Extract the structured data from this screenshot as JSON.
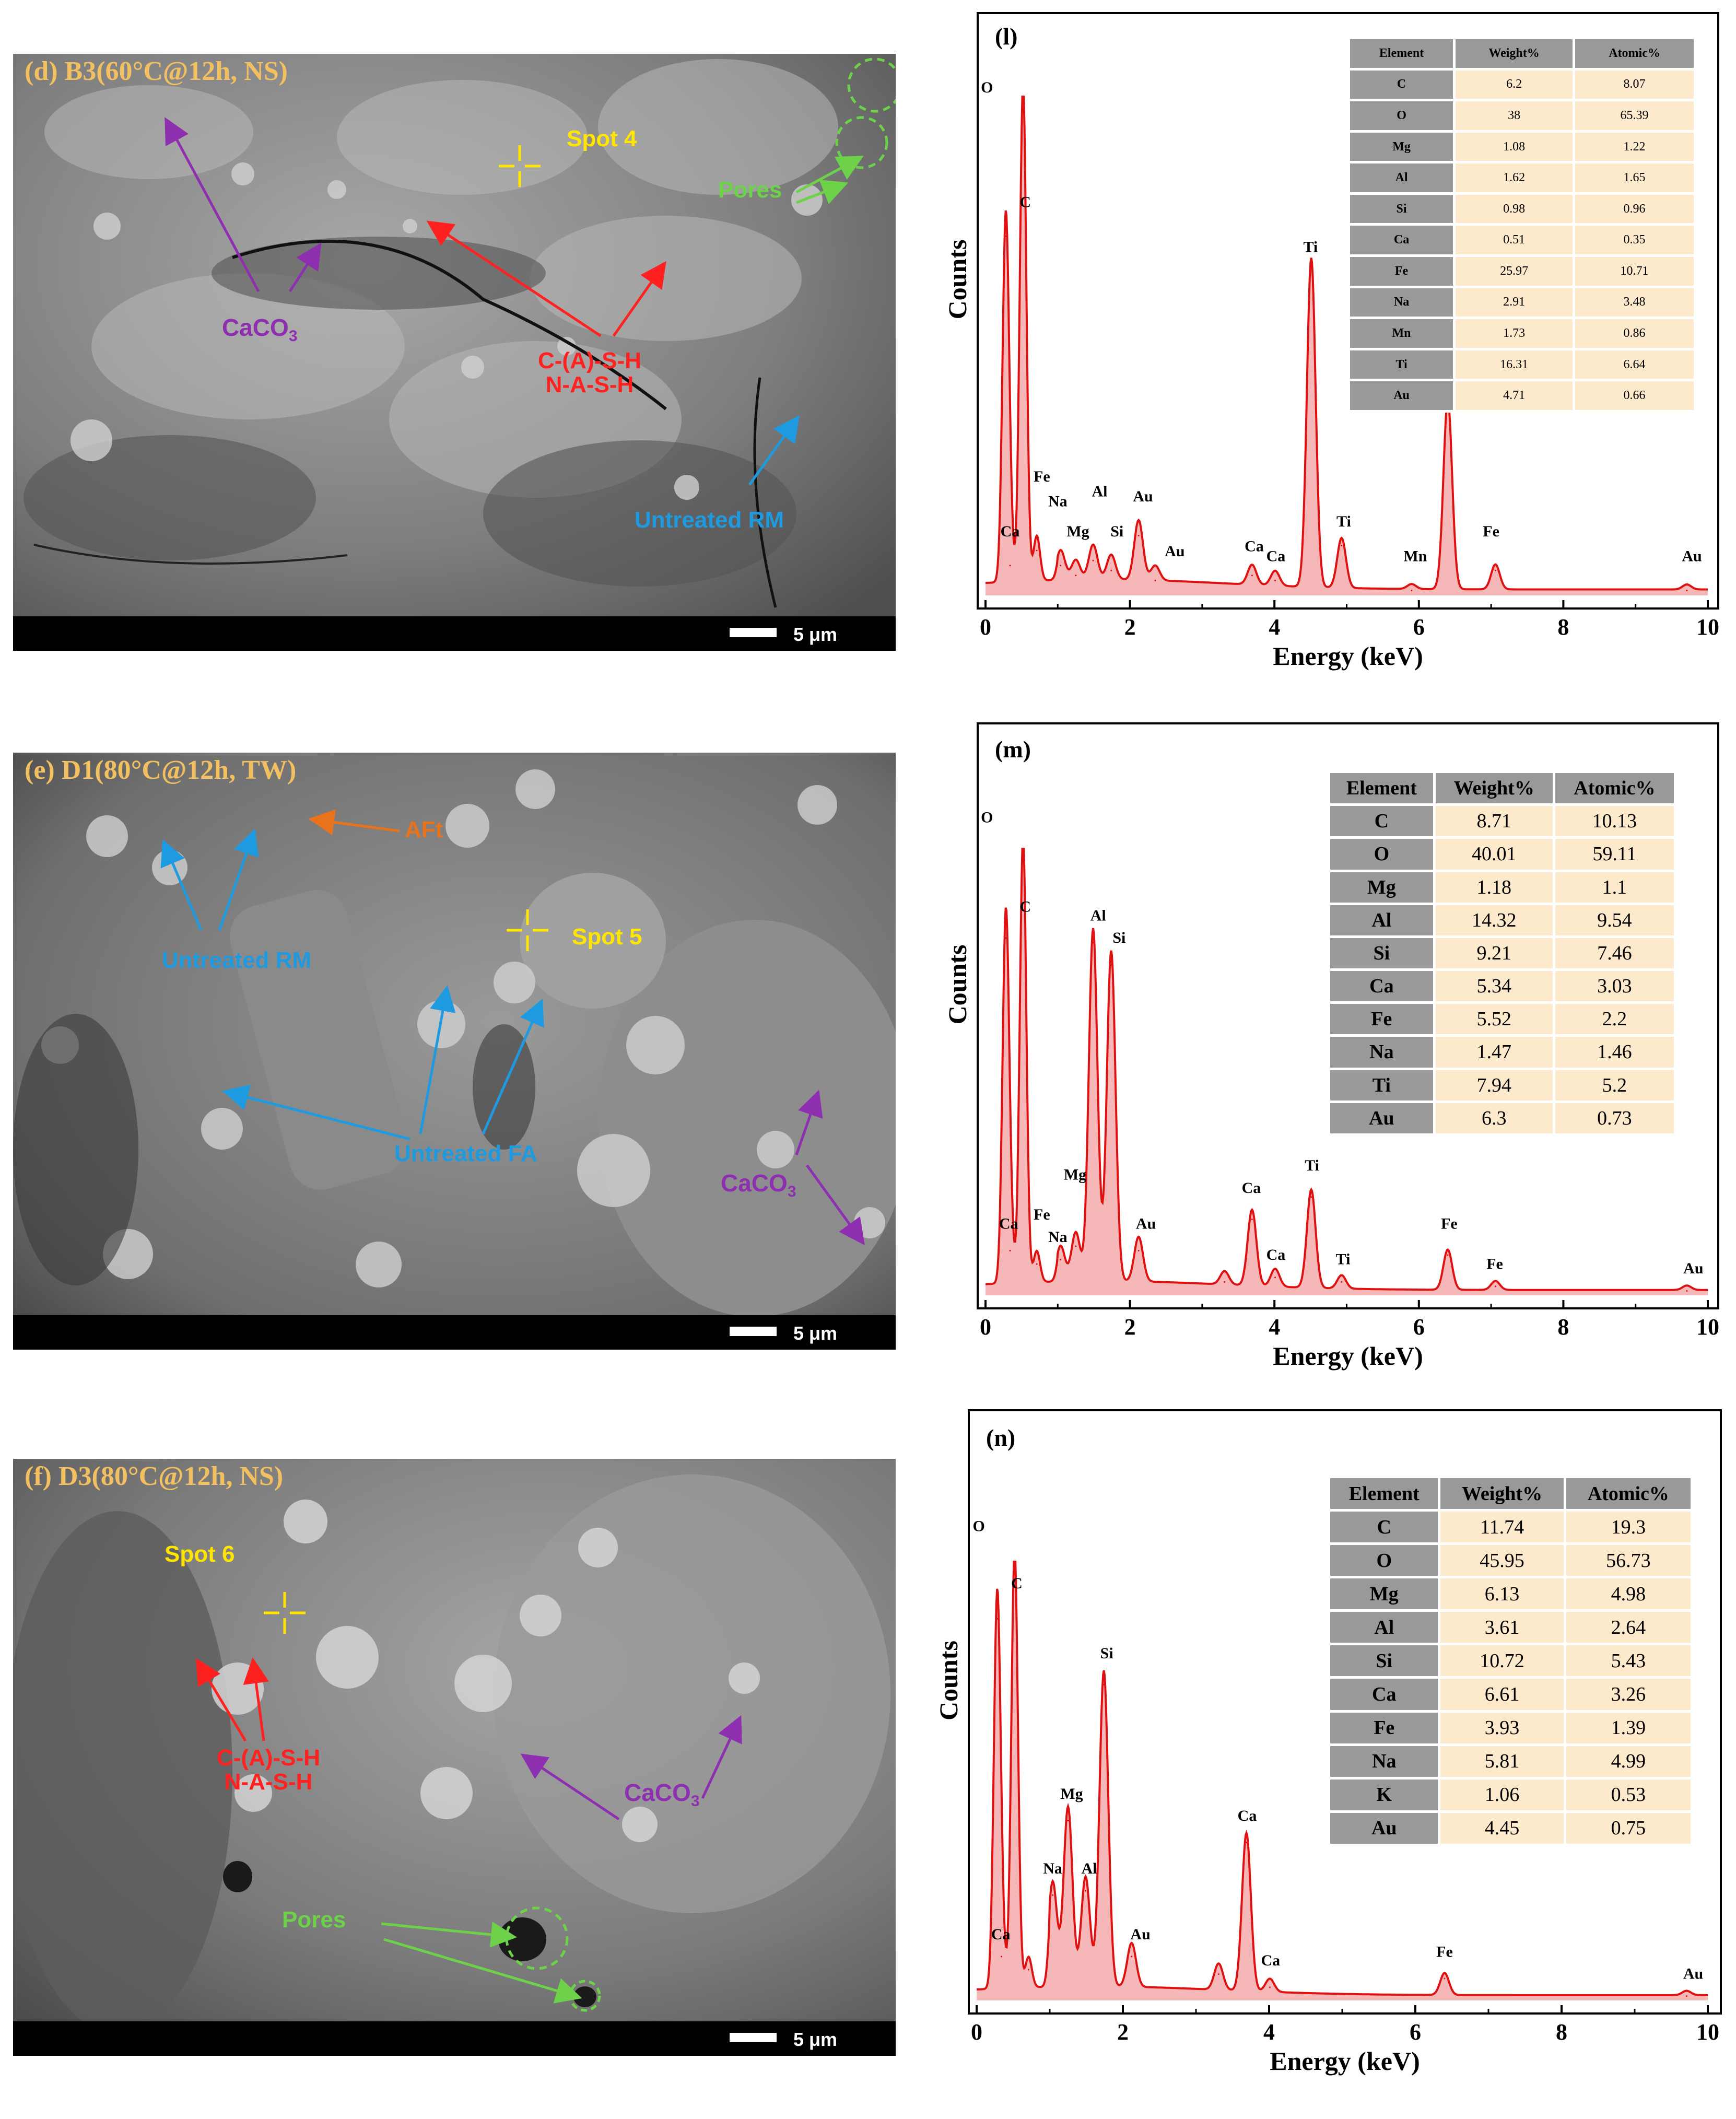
{
  "colors": {
    "spectrum": "#e01010",
    "spectrum_fill": "#f5b7b7",
    "table_header": "#999999",
    "table_value_bg": "#fde9cc",
    "label_orange": "#f2c060",
    "label_yellow": "#ffe600",
    "label_red": "#ff2020",
    "label_purple": "#8e2fb0",
    "label_blue": "#1e9be0",
    "label_green": "#6dd24a",
    "label_orange_aft": "#e8731c"
  },
  "sem_panels": [
    {
      "label": "(d) B3(60°C@12h, NS)",
      "scale_label": "5 μm",
      "annotations": {
        "spot": "Spot 4",
        "caco3_main": "CaCO",
        "caco3_sub": "3",
        "gel_line1": "C-(A)-S-H",
        "gel_line2": "N-A-S-H",
        "pores": "Pores",
        "untreated": "Untreated RM"
      }
    },
    {
      "label": "(e) D1(80°C@12h, TW)",
      "scale_label": "5 μm",
      "annotations": {
        "aft": "AFt",
        "spot": "Spot 5",
        "untreated_rm": "Untreated RM",
        "untreated_fa": "Untreated FA",
        "caco3_main": "CaCO",
        "caco3_sub": "3"
      }
    },
    {
      "label": "(f) D3(80°C@12h, NS)",
      "scale_label": "5 μm",
      "annotations": {
        "spot": "Spot 6",
        "gel_line1": "C-(A)-S-H",
        "gel_line2": "N-A-S-H",
        "caco3_main": "CaCO",
        "caco3_sub": "3",
        "pores": "Pores"
      }
    }
  ],
  "chart_data": [
    {
      "type": "line",
      "panel": "(l)",
      "xlabel": "Energy (keV)",
      "ylabel": "Counts",
      "xlim": [
        0,
        10
      ],
      "xticks": [
        "0",
        "2",
        "4",
        "6",
        "8",
        "10"
      ],
      "peaks": [
        {
          "element": "O",
          "x": 0.52,
          "y": 1.0
        },
        {
          "element": "Ca",
          "x": 0.34,
          "y": 0.06
        },
        {
          "element": "C",
          "x": 0.28,
          "y": 0.72
        },
        {
          "element": "Fe",
          "x": 0.71,
          "y": 0.09
        },
        {
          "element": "Na",
          "x": 1.04,
          "y": 0.06
        },
        {
          "element": "Mg",
          "x": 1.25,
          "y": 0.04
        },
        {
          "element": "Al",
          "x": 1.49,
          "y": 0.07
        },
        {
          "element": "Si",
          "x": 1.74,
          "y": 0.05
        },
        {
          "element": "Au",
          "x": 2.12,
          "y": 0.12
        },
        {
          "element": "Au",
          "x": 2.35,
          "y": 0.03
        },
        {
          "element": "Ca",
          "x": 3.69,
          "y": 0.04
        },
        {
          "element": "Ca",
          "x": 4.01,
          "y": 0.03
        },
        {
          "element": "Ti",
          "x": 4.51,
          "y": 0.66
        },
        {
          "element": "Ti",
          "x": 4.93,
          "y": 0.1
        },
        {
          "element": "Mn",
          "x": 5.9,
          "y": 0.01
        },
        {
          "element": "Fe",
          "x": 6.4,
          "y": 0.38
        },
        {
          "element": "Fe",
          "x": 7.06,
          "y": 0.05
        },
        {
          "element": "Au",
          "x": 9.71,
          "y": 0.01
        }
      ],
      "peak_labels": [
        {
          "text": "O",
          "x": 0.02,
          "y": 1.0
        },
        {
          "text": "C",
          "x": 0.55,
          "y": 0.77
        },
        {
          "text": "Ca",
          "x": 0.34,
          "y": 0.11
        },
        {
          "text": "Fe",
          "x": 0.78,
          "y": 0.22
        },
        {
          "text": "Na",
          "x": 1.0,
          "y": 0.17
        },
        {
          "text": "Mg",
          "x": 1.28,
          "y": 0.11
        },
        {
          "text": "Al",
          "x": 1.58,
          "y": 0.19
        },
        {
          "text": "Si",
          "x": 1.82,
          "y": 0.11
        },
        {
          "text": "Au",
          "x": 2.18,
          "y": 0.18
        },
        {
          "text": "Au",
          "x": 2.62,
          "y": 0.07
        },
        {
          "text": "Ca",
          "x": 3.72,
          "y": 0.08
        },
        {
          "text": "Ca",
          "x": 4.02,
          "y": 0.06
        },
        {
          "text": "Ti",
          "x": 4.5,
          "y": 0.68
        },
        {
          "text": "Ti",
          "x": 4.96,
          "y": 0.13
        },
        {
          "text": "Mn",
          "x": 5.95,
          "y": 0.06
        },
        {
          "text": "Fe",
          "x": 7.0,
          "y": 0.11
        },
        {
          "text": "Au",
          "x": 9.78,
          "y": 0.06
        }
      ],
      "table": {
        "headers": [
          "Element",
          "Weight%",
          "Atomic%"
        ],
        "rows": [
          [
            "C",
            "6.2",
            "8.07"
          ],
          [
            "O",
            "38",
            "65.39"
          ],
          [
            "Mg",
            "1.08",
            "1.22"
          ],
          [
            "Al",
            "1.62",
            "1.65"
          ],
          [
            "Si",
            "0.98",
            "0.96"
          ],
          [
            "Ca",
            "0.51",
            "0.35"
          ],
          [
            "Fe",
            "25.97",
            "10.71"
          ],
          [
            "Na",
            "2.91",
            "3.48"
          ],
          [
            "Mn",
            "1.73",
            "0.86"
          ],
          [
            "Ti",
            "16.31",
            "6.64"
          ],
          [
            "Au",
            "4.71",
            "0.66"
          ]
        ]
      }
    },
    {
      "type": "line",
      "panel": "(m)",
      "xlabel": "Energy (keV)",
      "ylabel": "Counts",
      "xlim": [
        0,
        10
      ],
      "xticks": [
        "0",
        "2",
        "4",
        "6",
        "8",
        "10"
      ],
      "peaks": [
        {
          "element": "O",
          "x": 0.52,
          "y": 1.0
        },
        {
          "element": "Ca",
          "x": 0.34,
          "y": 0.1
        },
        {
          "element": "C",
          "x": 0.28,
          "y": 0.8
        },
        {
          "element": "Fe",
          "x": 0.71,
          "y": 0.07
        },
        {
          "element": "Na",
          "x": 1.04,
          "y": 0.08
        },
        {
          "element": "Mg",
          "x": 1.25,
          "y": 0.11
        },
        {
          "element": "Al",
          "x": 1.49,
          "y": 0.79
        },
        {
          "element": "Si",
          "x": 1.74,
          "y": 0.74
        },
        {
          "element": "Au",
          "x": 2.12,
          "y": 0.1
        },
        {
          "element": "Ca",
          "x": 3.31,
          "y": 0.03
        },
        {
          "element": "Ca",
          "x": 3.69,
          "y": 0.17
        },
        {
          "element": "Ca",
          "x": 4.01,
          "y": 0.04
        },
        {
          "element": "Ti",
          "x": 4.51,
          "y": 0.22
        },
        {
          "element": "Ti",
          "x": 4.93,
          "y": 0.03
        },
        {
          "element": "Fe",
          "x": 6.4,
          "y": 0.09
        },
        {
          "element": "Fe",
          "x": 7.06,
          "y": 0.02
        },
        {
          "element": "Au",
          "x": 9.71,
          "y": 0.01
        }
      ],
      "peak_labels": [
        {
          "text": "O",
          "x": 0.02,
          "y": 1.05
        },
        {
          "text": "C",
          "x": 0.55,
          "y": 0.85
        },
        {
          "text": "Ca",
          "x": 0.32,
          "y": 0.14
        },
        {
          "text": "Fe",
          "x": 0.78,
          "y": 0.16
        },
        {
          "text": "Na",
          "x": 1.0,
          "y": 0.11
        },
        {
          "text": "Mg",
          "x": 1.24,
          "y": 0.25
        },
        {
          "text": "Al",
          "x": 1.56,
          "y": 0.83
        },
        {
          "text": "Si",
          "x": 1.85,
          "y": 0.78
        },
        {
          "text": "Au",
          "x": 2.22,
          "y": 0.14
        },
        {
          "text": "Ca",
          "x": 3.68,
          "y": 0.22
        },
        {
          "text": "Ca",
          "x": 4.02,
          "y": 0.07
        },
        {
          "text": "Ti",
          "x": 4.52,
          "y": 0.27
        },
        {
          "text": "Ti",
          "x": 4.95,
          "y": 0.06
        },
        {
          "text": "Fe",
          "x": 6.42,
          "y": 0.14
        },
        {
          "text": "Fe",
          "x": 7.05,
          "y": 0.05
        },
        {
          "text": "Au",
          "x": 9.8,
          "y": 0.04
        }
      ],
      "table": {
        "headers": [
          "Element",
          "Weight%",
          "Atomic%"
        ],
        "rows": [
          [
            "C",
            "8.71",
            "10.13"
          ],
          [
            "O",
            "40.01",
            "59.11"
          ],
          [
            "Mg",
            "1.18",
            "1.1"
          ],
          [
            "Al",
            "14.32",
            "9.54"
          ],
          [
            "Si",
            "9.21",
            "7.46"
          ],
          [
            "Ca",
            "5.34",
            "3.03"
          ],
          [
            "Fe",
            "5.52",
            "2.2"
          ],
          [
            "Na",
            "1.47",
            "1.46"
          ],
          [
            "Ti",
            "7.94",
            "5.2"
          ],
          [
            "Au",
            "6.3",
            "0.73"
          ]
        ]
      }
    },
    {
      "type": "line",
      "panel": "(n)",
      "xlabel": "Energy (keV)",
      "ylabel": "Counts",
      "xlim": [
        0,
        10
      ],
      "xticks": [
        "0",
        "2",
        "4",
        "6",
        "8",
        "10"
      ],
      "peaks": [
        {
          "element": "O",
          "x": 0.52,
          "y": 1.0
        },
        {
          "element": "Ca",
          "x": 0.34,
          "y": 0.1
        },
        {
          "element": "C",
          "x": 0.28,
          "y": 0.87
        },
        {
          "element": "Fe",
          "x": 0.71,
          "y": 0.07
        },
        {
          "element": "Na",
          "x": 1.04,
          "y": 0.24
        },
        {
          "element": "Mg",
          "x": 1.25,
          "y": 0.41
        },
        {
          "element": "Al",
          "x": 1.49,
          "y": 0.25
        },
        {
          "element": "Si",
          "x": 1.74,
          "y": 0.72
        },
        {
          "element": "Au",
          "x": 2.12,
          "y": 0.1
        },
        {
          "element": "Ca",
          "x": 3.31,
          "y": 0.06
        },
        {
          "element": "Ca",
          "x": 3.69,
          "y": 0.36
        },
        {
          "element": "Ca",
          "x": 4.01,
          "y": 0.03
        },
        {
          "element": "Fe",
          "x": 6.4,
          "y": 0.05
        },
        {
          "element": "Au",
          "x": 9.71,
          "y": 0.01
        }
      ],
      "peak_labels": [
        {
          "text": "O",
          "x": 0.03,
          "y": 1.06
        },
        {
          "text": "C",
          "x": 0.55,
          "y": 0.93
        },
        {
          "text": "Ca",
          "x": 0.33,
          "y": 0.13
        },
        {
          "text": "Na",
          "x": 1.04,
          "y": 0.28
        },
        {
          "text": "Mg",
          "x": 1.3,
          "y": 0.45
        },
        {
          "text": "Al",
          "x": 1.54,
          "y": 0.28
        },
        {
          "text": "Si",
          "x": 1.78,
          "y": 0.77
        },
        {
          "text": "Au",
          "x": 2.24,
          "y": 0.13
        },
        {
          "text": "Ca",
          "x": 3.7,
          "y": 0.4
        },
        {
          "text": "Ca",
          "x": 4.02,
          "y": 0.07
        },
        {
          "text": "Fe",
          "x": 6.4,
          "y": 0.09
        },
        {
          "text": "Au",
          "x": 9.8,
          "y": 0.04
        }
      ],
      "table": {
        "headers": [
          "Element",
          "Weight%",
          "Atomic%"
        ],
        "rows": [
          [
            "C",
            "11.74",
            "19.3"
          ],
          [
            "O",
            "45.95",
            "56.73"
          ],
          [
            "Mg",
            "6.13",
            "4.98"
          ],
          [
            "Al",
            "3.61",
            "2.64"
          ],
          [
            "Si",
            "10.72",
            "5.43"
          ],
          [
            "Ca",
            "6.61",
            "3.26"
          ],
          [
            "Fe",
            "3.93",
            "1.39"
          ],
          [
            "Na",
            "5.81",
            "4.99"
          ],
          [
            "K",
            "1.06",
            "0.53"
          ],
          [
            "Au",
            "4.45",
            "0.75"
          ]
        ]
      }
    }
  ]
}
